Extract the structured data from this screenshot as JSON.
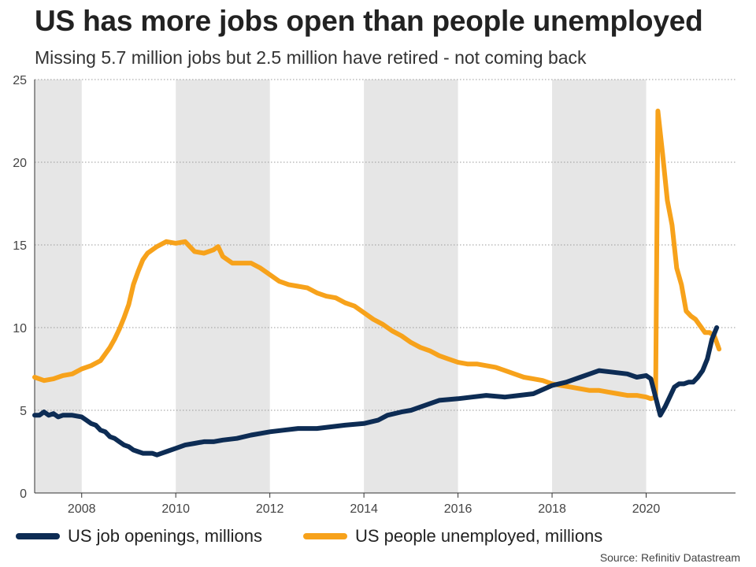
{
  "chart_data": {
    "type": "line",
    "title": "US has more jobs open than people unemployed",
    "subtitle": "Missing 5.7 million jobs but 2.5 million have retired - not coming back",
    "xlabel": "",
    "ylabel": "",
    "xlim": [
      2007.0,
      2021.9
    ],
    "ylim": [
      0,
      25
    ],
    "yticks": [
      0,
      5,
      10,
      15,
      20,
      25
    ],
    "xticks": [
      2008,
      2010,
      2012,
      2014,
      2016,
      2018,
      2020
    ],
    "grid": "horizontal dotted",
    "shaded_periods": [
      [
        2007.0,
        2008.0
      ],
      [
        2010.0,
        2012.0
      ],
      [
        2014.0,
        2016.0
      ],
      [
        2018.0,
        2020.0
      ]
    ],
    "legend_position": "bottom",
    "source": "Source: Refinitiv Datastream",
    "series": [
      {
        "name": "US job openings, millions",
        "color": "#0d2c54",
        "x": [
          2007.0,
          2007.1,
          2007.2,
          2007.3,
          2007.4,
          2007.5,
          2007.6,
          2007.8,
          2008.0,
          2008.1,
          2008.2,
          2008.3,
          2008.4,
          2008.5,
          2008.6,
          2008.7,
          2008.8,
          2008.9,
          2009.0,
          2009.1,
          2009.2,
          2009.3,
          2009.4,
          2009.5,
          2009.6,
          2009.7,
          2009.8,
          2010.0,
          2010.2,
          2010.4,
          2010.6,
          2010.8,
          2011.0,
          2011.3,
          2011.6,
          2011.8,
          2012.0,
          2012.3,
          2012.6,
          2013.0,
          2013.3,
          2013.6,
          2014.0,
          2014.3,
          2014.5,
          2014.8,
          2015.0,
          2015.3,
          2015.6,
          2016.0,
          2016.3,
          2016.6,
          2017.0,
          2017.3,
          2017.6,
          2018.0,
          2018.3,
          2018.6,
          2018.8,
          2019.0,
          2019.3,
          2019.6,
          2019.8,
          2020.0,
          2020.1,
          2020.2,
          2020.3,
          2020.4,
          2020.5,
          2020.6,
          2020.7,
          2020.8,
          2020.9,
          2021.0,
          2021.1,
          2021.2,
          2021.3,
          2021.4,
          2021.5
        ],
        "y": [
          4.7,
          4.7,
          4.9,
          4.7,
          4.8,
          4.6,
          4.7,
          4.7,
          4.6,
          4.4,
          4.2,
          4.1,
          3.8,
          3.7,
          3.4,
          3.3,
          3.1,
          2.9,
          2.8,
          2.6,
          2.5,
          2.4,
          2.4,
          2.4,
          2.3,
          2.4,
          2.5,
          2.7,
          2.9,
          3.0,
          3.1,
          3.1,
          3.2,
          3.3,
          3.5,
          3.6,
          3.7,
          3.8,
          3.9,
          3.9,
          4.0,
          4.1,
          4.2,
          4.4,
          4.7,
          4.9,
          5.0,
          5.3,
          5.6,
          5.7,
          5.8,
          5.9,
          5.8,
          5.9,
          6.0,
          6.5,
          6.7,
          7.0,
          7.2,
          7.4,
          7.3,
          7.2,
          7.0,
          7.1,
          6.9,
          5.8,
          4.7,
          5.2,
          5.8,
          6.4,
          6.6,
          6.6,
          6.7,
          6.7,
          7.0,
          7.4,
          8.1,
          9.3,
          10.0
        ]
      },
      {
        "name": "US people unemployed, millions",
        "color": "#f7a21b",
        "x": [
          2007.0,
          2007.2,
          2007.4,
          2007.6,
          2007.8,
          2008.0,
          2008.2,
          2008.4,
          2008.5,
          2008.6,
          2008.7,
          2008.8,
          2008.9,
          2009.0,
          2009.1,
          2009.2,
          2009.3,
          2009.4,
          2009.5,
          2009.6,
          2009.8,
          2010.0,
          2010.2,
          2010.4,
          2010.6,
          2010.8,
          2010.9,
          2011.0,
          2011.2,
          2011.4,
          2011.6,
          2011.8,
          2012.0,
          2012.2,
          2012.4,
          2012.6,
          2012.8,
          2013.0,
          2013.2,
          2013.4,
          2013.6,
          2013.8,
          2014.0,
          2014.2,
          2014.4,
          2014.6,
          2014.8,
          2015.0,
          2015.2,
          2015.4,
          2015.6,
          2015.8,
          2016.0,
          2016.2,
          2016.4,
          2016.6,
          2016.8,
          2017.0,
          2017.2,
          2017.4,
          2017.6,
          2017.8,
          2018.0,
          2018.2,
          2018.4,
          2018.6,
          2018.8,
          2019.0,
          2019.2,
          2019.4,
          2019.6,
          2019.8,
          2020.0,
          2020.1,
          2020.2,
          2020.25,
          2020.35,
          2020.45,
          2020.55,
          2020.65,
          2020.75,
          2020.85,
          2020.95,
          2021.05,
          2021.15,
          2021.25,
          2021.35,
          2021.45,
          2021.55
        ],
        "y": [
          7.0,
          6.8,
          6.9,
          7.1,
          7.2,
          7.5,
          7.7,
          8.0,
          8.4,
          8.8,
          9.3,
          9.9,
          10.6,
          11.4,
          12.6,
          13.4,
          14.1,
          14.5,
          14.7,
          14.9,
          15.2,
          15.1,
          15.2,
          14.6,
          14.5,
          14.7,
          14.9,
          14.3,
          13.9,
          13.9,
          13.9,
          13.6,
          13.2,
          12.8,
          12.6,
          12.5,
          12.4,
          12.1,
          11.9,
          11.8,
          11.5,
          11.3,
          10.9,
          10.5,
          10.2,
          9.8,
          9.5,
          9.1,
          8.8,
          8.6,
          8.3,
          8.1,
          7.9,
          7.8,
          7.8,
          7.7,
          7.6,
          7.4,
          7.2,
          7.0,
          6.9,
          6.8,
          6.6,
          6.5,
          6.4,
          6.3,
          6.2,
          6.2,
          6.1,
          6.0,
          5.9,
          5.9,
          5.8,
          5.7,
          5.8,
          23.1,
          20.5,
          17.7,
          16.2,
          13.6,
          12.6,
          11.0,
          10.7,
          10.5,
          10.1,
          9.7,
          9.7,
          9.5,
          8.7
        ]
      }
    ]
  }
}
